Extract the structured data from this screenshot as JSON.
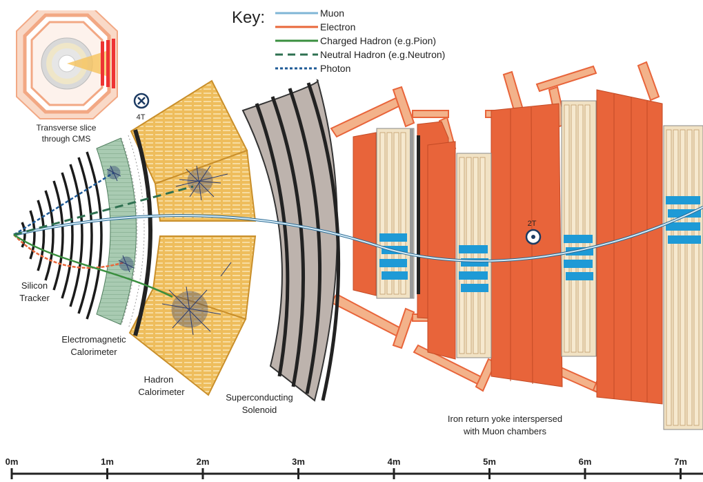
{
  "key": {
    "title": "Key:",
    "items": [
      {
        "label": "Muon",
        "color": "#7fb6d6",
        "style": "solid"
      },
      {
        "label": "Electron",
        "color": "#e8673a",
        "style": "solid"
      },
      {
        "label": "Charged Hadron (e.g.Pion)",
        "color": "#3a8f3f",
        "style": "solid"
      },
      {
        "label": "Neutral Hadron (e.g.Neutron)",
        "color": "#2e7050",
        "style": "dashed"
      },
      {
        "label": "Photon",
        "color": "#1e5a96",
        "style": "dotted"
      }
    ]
  },
  "inset": {
    "caption_line1": "Transverse slice",
    "caption_line2": "through CMS"
  },
  "field_inner": "4T",
  "field_outer": "2T",
  "labels": {
    "tracker": [
      "Silicon",
      "Tracker"
    ],
    "ecal": [
      "Electromagnetic",
      "Calorimeter"
    ],
    "hcal": [
      "Hadron",
      "Calorimeter"
    ],
    "solenoid": [
      "Superconducting",
      "Solenoid"
    ],
    "yoke": [
      "Iron return yoke interspersed",
      "with Muon chambers"
    ]
  },
  "scale": {
    "ticks": [
      "0m",
      "1m",
      "2m",
      "3m",
      "4m",
      "5m",
      "6m",
      "7m"
    ]
  },
  "colors": {
    "iron": "#e8643a",
    "iron_arm": "#f3b28a",
    "chamber": "#f1e2c4",
    "muon_block": "#1e9ad6",
    "hcal": "#eebd5c",
    "ecal": "#a7c9b0",
    "solenoid": "#bdb3ad",
    "tracker": "#1b1b1b",
    "shower": "#2a3b70"
  }
}
